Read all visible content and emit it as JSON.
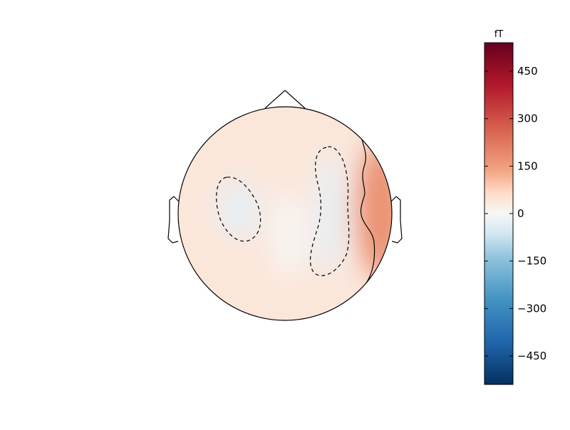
{
  "chart_data": {
    "type": "heatmap",
    "title": "",
    "colorbar": {
      "unit": "fT",
      "vmin": -540,
      "vmax": 540,
      "ticks": [
        -450,
        -300,
        -150,
        0,
        150,
        300,
        450
      ],
      "tick_labels": [
        "−450",
        "−300",
        "−150",
        "0",
        "150",
        "300",
        "450"
      ],
      "colormap": "RdBu_r"
    },
    "colormap_stops": [
      {
        "value": 540,
        "color": "#67001f"
      },
      {
        "value": 405,
        "color": "#b2182b"
      },
      {
        "value": 270,
        "color": "#d6604d"
      },
      {
        "value": 135,
        "color": "#f4a582"
      },
      {
        "value": 67,
        "color": "#fddbc7"
      },
      {
        "value": 0,
        "color": "#f7f7f7"
      },
      {
        "value": -67,
        "color": "#d1e5f0"
      },
      {
        "value": -135,
        "color": "#92c5de"
      },
      {
        "value": -270,
        "color": "#4393c3"
      },
      {
        "value": -405,
        "color": "#2166ac"
      },
      {
        "value": -540,
        "color": "#053061"
      }
    ],
    "field": {
      "baseline_value": 40,
      "sources": [
        {
          "region": "right-temporal",
          "value": 175
        },
        {
          "region": "left-temporal",
          "value": -30
        },
        {
          "region": "right-central",
          "value": -28
        },
        {
          "region": "midline-central",
          "value": 5
        }
      ]
    },
    "contours": [
      {
        "level": 0,
        "style": "dashed",
        "region": "left-temporal"
      },
      {
        "level": 0,
        "style": "dashed",
        "region": "right-central"
      },
      {
        "level": 150,
        "style": "solid",
        "region": "right-temporal"
      }
    ]
  }
}
